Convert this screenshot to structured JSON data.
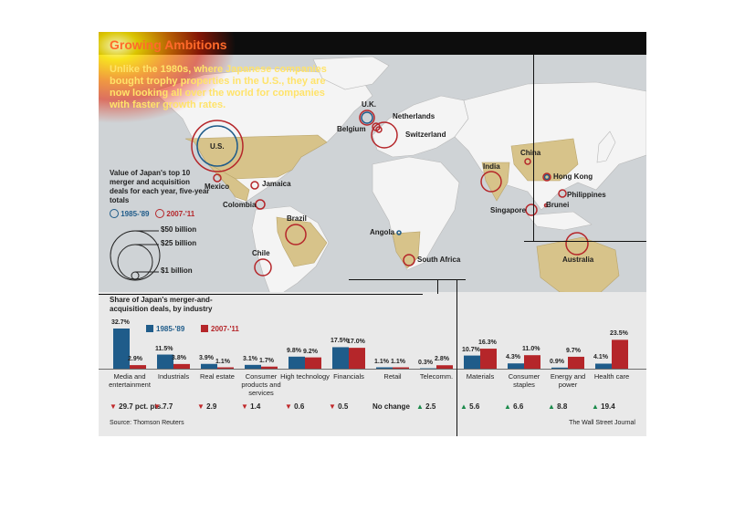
{
  "header": {
    "title": "Growing Ambitions",
    "subtitle": "Unlike the 1980s, where Japanese companies bought trophy properties in the U.S., they are now looking all over the world for companies with faster growth rates."
  },
  "map_legend": {
    "title": "Value of Japan's top 10 merger and acquisition deals for each year, five-year totals",
    "period_1": "1985-'89",
    "period_2": "2007-'11",
    "scale": [
      "$50 billion",
      "$25 billion",
      "$1 billion"
    ]
  },
  "map_labels": {
    "us": "U.S.",
    "mexico": "Mexico",
    "jamaica": "Jamaica",
    "colombia": "Colombia",
    "brazil": "Brazil",
    "chile": "Chile",
    "uk": "U.K.",
    "netherlands": "Netherlands",
    "belgium": "Belgium",
    "switzerland": "Switzerland",
    "angola": "Angola",
    "south_africa": "South Africa",
    "india": "India",
    "china": "China",
    "hong_kong": "Hong Kong",
    "philippines": "Philippines",
    "singapore": "Singapore",
    "brunei": "Brunei",
    "australia": "Australia"
  },
  "colors": {
    "period_1": "#1f5c8a",
    "period_2": "#b5262a",
    "land": "#f4f4f4",
    "highlight": "#d7c38a",
    "up": "#1a8a4a",
    "down": "#c0282a"
  },
  "chart_data": {
    "type": "bar",
    "title": "Share of Japan's merger-and-acquisition deals, by industry",
    "categories": [
      "Media and entertainment",
      "Industrials",
      "Real estate",
      "Consumer products and services",
      "High technology",
      "Financials",
      "Retail",
      "Telecomm.",
      "Materials",
      "Consumer staples",
      "Energy and power",
      "Health care"
    ],
    "series": [
      {
        "name": "1985-'89",
        "values": [
          32.7,
          11.5,
          3.9,
          3.1,
          9.8,
          17.5,
          1.1,
          0.3,
          10.7,
          4.3,
          0.9,
          4.1
        ]
      },
      {
        "name": "2007-'11",
        "values": [
          2.9,
          3.8,
          1.1,
          1.7,
          9.2,
          17.0,
          1.1,
          2.8,
          16.3,
          11.0,
          9.7,
          23.5
        ]
      }
    ],
    "value_labels_1": [
      "32.7%",
      "11.5%",
      "3.9%",
      "3.1%",
      "9.8%",
      "17.5%",
      "1.1%",
      "0.3%",
      "10.7%",
      "4.3%",
      "0.9%",
      "4.1%"
    ],
    "value_labels_2": [
      "2.9%",
      "3.8%",
      "1.1%",
      "1.7%",
      "9.2%",
      "17.0%",
      "1.1%",
      "2.8%",
      "16.3%",
      "11.0%",
      "9.7%",
      "23.5%"
    ],
    "changes": [
      "29.7 pct. pts.",
      "7.7",
      "2.9",
      "1.4",
      "0.6",
      "0.5",
      "No change",
      "2.5",
      "5.6",
      "6.6",
      "8.8",
      "19.4"
    ],
    "change_direction": [
      "down",
      "down",
      "down",
      "down",
      "down",
      "down",
      "none",
      "up",
      "up",
      "up",
      "up",
      "up"
    ],
    "ylim": [
      0,
      35
    ]
  },
  "footer": {
    "source": "Source: Thomson Reuters",
    "credit": "The Wall Street Journal"
  }
}
